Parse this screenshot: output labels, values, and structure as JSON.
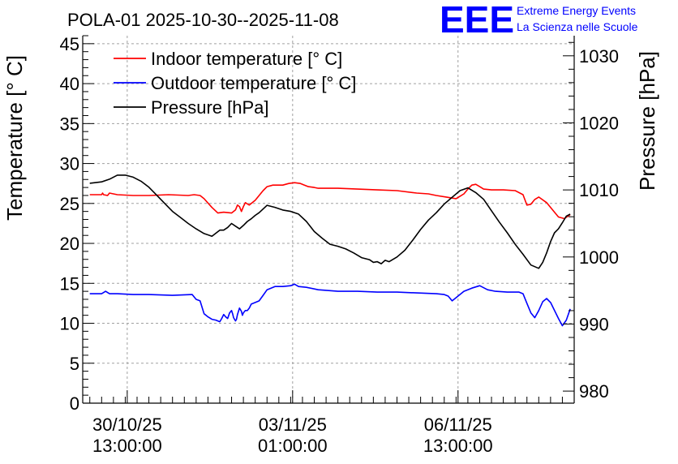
{
  "title": "POLA-01 2025-10-30--2025-11-08",
  "logo": {
    "mark": "EEE",
    "line1": "Extreme Energy Events",
    "line2": "La Scienza nelle Scuole",
    "color": "#0000ff"
  },
  "chart_data": {
    "type": "line",
    "x_unit": "hours since 2025-10-30 00:00",
    "xlim": [
      -9.6,
      240
    ],
    "x_ticks": [
      {
        "x": 13,
        "line1": "30/10/25",
        "line2": "13:00:00"
      },
      {
        "x": 97,
        "line1": "03/11/25",
        "line2": "01:00:00"
      },
      {
        "x": 181,
        "line1": "06/11/25",
        "line2": "13:00:00"
      }
    ],
    "x_minor_step": 6,
    "left_axis": {
      "label": "Temperature [° C]",
      "lim": [
        0,
        46
      ],
      "ticks": [
        0,
        5,
        10,
        15,
        20,
        25,
        30,
        35,
        40,
        45
      ]
    },
    "right_axis": {
      "label": "Pressure [hPa]",
      "lim": [
        978.2,
        1033
      ],
      "ticks": [
        980,
        990,
        1000,
        1010,
        1020,
        1030
      ]
    },
    "grid": true,
    "legend_position": "top-left",
    "series": [
      {
        "name": "Indoor temperature [° C]",
        "axis": "left",
        "color": "#ff0000",
        "x": [
          -6,
          0,
          0.5,
          1,
          3,
          4,
          8,
          16,
          24,
          34,
          44,
          47,
          50,
          52,
          56,
          59,
          62,
          66,
          68,
          69,
          70,
          71,
          72,
          73,
          75,
          78,
          80,
          82,
          84,
          87,
          90,
          92,
          95,
          98,
          101,
          103,
          105,
          108,
          110,
          120,
          130,
          140,
          150,
          160,
          166,
          170,
          175,
          180,
          182,
          184,
          186,
          188,
          190,
          192,
          194,
          198,
          204,
          210,
          214,
          216,
          218,
          220,
          222,
          226,
          232,
          235,
          238
        ],
        "y": [
          26.1,
          26.1,
          26.3,
          26.1,
          26.0,
          26.3,
          26.1,
          26.0,
          26.0,
          26.1,
          26.0,
          26.1,
          26.0,
          25.6,
          24.5,
          23.8,
          23.9,
          23.8,
          24.2,
          24.8,
          24.6,
          24.0,
          24.6,
          25.1,
          24.8,
          25.4,
          26.0,
          26.6,
          27.1,
          27.3,
          27.3,
          27.3,
          27.5,
          27.6,
          27.5,
          27.3,
          27.1,
          27.0,
          26.9,
          26.9,
          26.8,
          26.7,
          26.6,
          26.3,
          26.2,
          26.0,
          25.8,
          25.6,
          25.9,
          26.2,
          26.8,
          27.3,
          27.4,
          27.1,
          26.8,
          26.7,
          26.7,
          26.6,
          26.1,
          24.8,
          24.9,
          25.5,
          25.8,
          25.1,
          23.3,
          23.1,
          23.6
        ]
      },
      {
        "name": "Outdoor temperature [° C]",
        "axis": "left",
        "color": "#0000ff",
        "x": [
          -6,
          0,
          2,
          4,
          8,
          16,
          24,
          36,
          46,
          48,
          50,
          52,
          54,
          56,
          58,
          60,
          61,
          62,
          63,
          64,
          65,
          66,
          66.5,
          67,
          68,
          68.5,
          69,
          70,
          71,
          71.5,
          72,
          73,
          74,
          75,
          76,
          78,
          80,
          82,
          84,
          88,
          92,
          96,
          98,
          100,
          104,
          110,
          120,
          130,
          140,
          150,
          160,
          170,
          174,
          176,
          178,
          180,
          184,
          188,
          192,
          196,
          200,
          206,
          212,
          214,
          216,
          218,
          220,
          222,
          224,
          226,
          228,
          232,
          234,
          236,
          238
        ],
        "y": [
          13.7,
          13.7,
          14.0,
          13.7,
          13.7,
          13.6,
          13.6,
          13.5,
          13.6,
          13.0,
          12.8,
          11.2,
          10.8,
          10.5,
          10.4,
          10.2,
          10.6,
          11.1,
          10.8,
          10.6,
          11.3,
          11.6,
          11.2,
          10.7,
          10.3,
          10.5,
          11.1,
          11.9,
          11.5,
          11.0,
          11.3,
          11.6,
          11.6,
          11.9,
          12.4,
          12.6,
          12.8,
          13.5,
          14.2,
          14.6,
          14.6,
          14.7,
          14.9,
          14.6,
          14.5,
          14.2,
          14.0,
          14.0,
          13.9,
          13.9,
          13.8,
          13.7,
          13.6,
          13.4,
          12.8,
          13.2,
          14.0,
          14.4,
          14.7,
          14.2,
          14.0,
          13.9,
          13.9,
          13.7,
          12.5,
          11.3,
          10.7,
          11.6,
          12.7,
          13.1,
          12.6,
          10.6,
          9.7,
          10.4,
          11.8
        ]
      },
      {
        "name": "Pressure [hPa]",
        "axis": "right",
        "color": "#000000",
        "x": [
          -6,
          0,
          4,
          8,
          12,
          16,
          20,
          24,
          28,
          32,
          36,
          40,
          44,
          48,
          52,
          56,
          60,
          62,
          64,
          66,
          68,
          70,
          72,
          74,
          76,
          78,
          80,
          84,
          88,
          92,
          96,
          100,
          104,
          108,
          112,
          116,
          120,
          124,
          128,
          132,
          136,
          138,
          140,
          142,
          144,
          146,
          150,
          154,
          158,
          162,
          166,
          170,
          174,
          178,
          182,
          186,
          190,
          194,
          198,
          202,
          206,
          210,
          214,
          218,
          222,
          224,
          226,
          228,
          230,
          232,
          234,
          236,
          238
        ],
        "y": [
          1011.0,
          1011.2,
          1011.6,
          1012.2,
          1012.2,
          1011.9,
          1011.3,
          1010.4,
          1009.2,
          1008.0,
          1006.8,
          1005.9,
          1005.0,
          1004.2,
          1003.5,
          1003.1,
          1004.0,
          1004.0,
          1004.4,
          1005.0,
          1004.6,
          1004.2,
          1004.7,
          1005.3,
          1005.7,
          1006.2,
          1006.6,
          1007.7,
          1007.4,
          1007.0,
          1006.8,
          1006.4,
          1005.3,
          1003.8,
          1002.8,
          1001.9,
          1001.6,
          1001.2,
          1000.6,
          999.9,
          999.6,
          999.2,
          999.3,
          999.0,
          999.5,
          999.3,
          1000.0,
          1001.0,
          1002.5,
          1004.1,
          1005.5,
          1006.6,
          1007.9,
          1008.9,
          1009.9,
          1010.3,
          1009.6,
          1008.6,
          1006.9,
          1005.2,
          1003.6,
          1001.9,
          1000.4,
          998.8,
          998.3,
          999.2,
          1000.6,
          1002.3,
          1003.6,
          1004.2,
          1005.1,
          1006.1,
          1006.4
        ]
      }
    ]
  }
}
